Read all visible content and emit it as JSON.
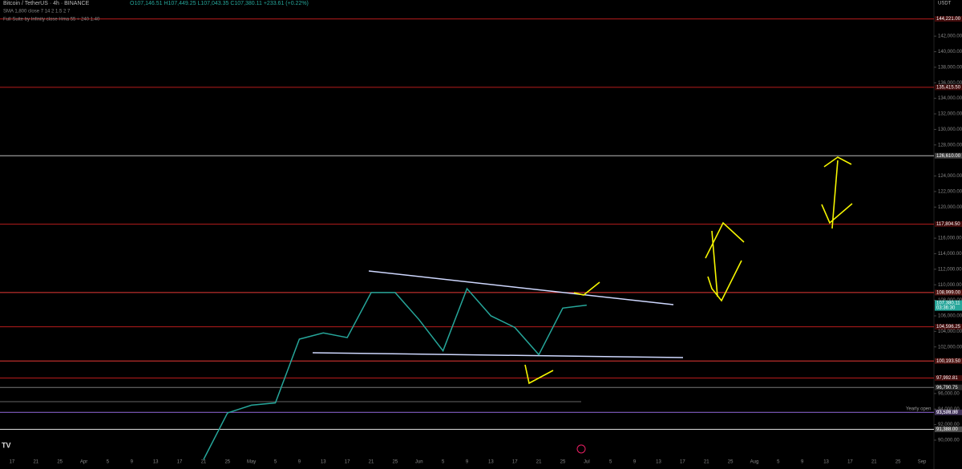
{
  "chart_data": {
    "type": "line",
    "title": "Bitcoin / TetherUS · 4h · BINANCE",
    "ohlc_text": "O107,146.51 H107,449.25 L107,043.35 C107,380.11 +233.61 (+0.22%)",
    "indicators": [
      "SMA 1,800 close 7 14 2 1.5 2 7",
      "Full Suite by Infinity close Hma 55 ÷ 240 1.40"
    ],
    "currency": "USDT",
    "categories": [
      "17",
      "21",
      "25",
      "Apr",
      "5",
      "9",
      "13",
      "17",
      "21",
      "25",
      "May",
      "5",
      "9",
      "13",
      "17",
      "21",
      "25",
      "Jun",
      "5",
      "9",
      "13",
      "17",
      "21",
      "25",
      "Jul",
      "5",
      "9",
      "13",
      "17",
      "21",
      "25",
      "Aug",
      "5",
      "9",
      "13",
      "17",
      "21",
      "25",
      "Sep"
    ],
    "series": [
      {
        "name": "BTCUSDT",
        "color": "#26a69a",
        "values": [
          null,
          null,
          null,
          null,
          null,
          null,
          null,
          null,
          87500,
          93500,
          94500,
          94800,
          103000,
          103800,
          103200,
          109000,
          109000,
          105500,
          101500,
          109500,
          106000,
          104500,
          101000,
          107000,
          107380,
          null,
          null,
          null,
          null,
          null,
          null,
          null,
          null,
          null,
          null,
          null,
          null,
          null,
          null
        ]
      }
    ],
    "ylim": [
      87833,
      146656
    ],
    "yticks": [
      {
        "value": 90000,
        "label": "90,000.00"
      },
      {
        "value": 92000,
        "label": "92,000.00"
      },
      {
        "value": 94000,
        "label": "94,000.00"
      },
      {
        "value": 96000,
        "label": "96,000.00"
      },
      {
        "value": 102000,
        "label": "102,000.00"
      },
      {
        "value": 104000,
        "label": "104,000.00"
      },
      {
        "value": 106000,
        "label": "106,000.00"
      },
      {
        "value": 108000,
        "label": "108,000.00"
      },
      {
        "value": 110000,
        "label": "110,000.00"
      },
      {
        "value": 112000,
        "label": "112,000.00"
      },
      {
        "value": 114000,
        "label": "114,000.00"
      },
      {
        "value": 116000,
        "label": "116,000.00"
      },
      {
        "value": 120000,
        "label": "120,000.00"
      },
      {
        "value": 122000,
        "label": "122,000.00"
      },
      {
        "value": 124000,
        "label": "124,000.00"
      },
      {
        "value": 128000,
        "label": "128,000.00"
      },
      {
        "value": 130000,
        "label": "130,000.00"
      },
      {
        "value": 132000,
        "label": "132,000.00"
      },
      {
        "value": 134000,
        "label": "134,000.00"
      },
      {
        "value": 136000,
        "label": "136,000.00"
      },
      {
        "value": 138000,
        "label": "138,000.00"
      },
      {
        "value": 140000,
        "label": "140,000.00"
      },
      {
        "value": 142000,
        "label": "142,000.00"
      }
    ],
    "levels": [
      {
        "value": 144221,
        "label": "144,221.00",
        "color": "#b71c1c"
      },
      {
        "value": 135415.5,
        "label": "135,415.50",
        "color": "#b71c1c"
      },
      {
        "value": 126610,
        "label": "126,610.00",
        "color": "#bbbbbb"
      },
      {
        "value": 117804.5,
        "label": "117,804.50",
        "color": "#b71c1c"
      },
      {
        "value": 108999,
        "label": "108,999.00",
        "color": "#e53935"
      },
      {
        "value": 104596.25,
        "label": "104,596.25",
        "color": "#b71c1c"
      },
      {
        "value": 100193.5,
        "label": "100,193.50",
        "color": "#e53935"
      },
      {
        "value": 97992.81,
        "label": "97,992.81",
        "color": "#b71c1c"
      },
      {
        "value": 96790.75,
        "label": "96,790.75",
        "color": "#777777"
      },
      {
        "value": 93589.38,
        "label": "93,589.38",
        "color": "#555555"
      },
      {
        "value": 93576,
        "label": "93,576.00",
        "color": "#7e57c2"
      },
      {
        "value": 91388,
        "label": "91,388.00",
        "color": "#dddddd"
      }
    ],
    "annotation": "Yearly open",
    "last_price": {
      "value": 107380.11,
      "label": "107,380.11",
      "countdown": "03:36:30"
    }
  }
}
